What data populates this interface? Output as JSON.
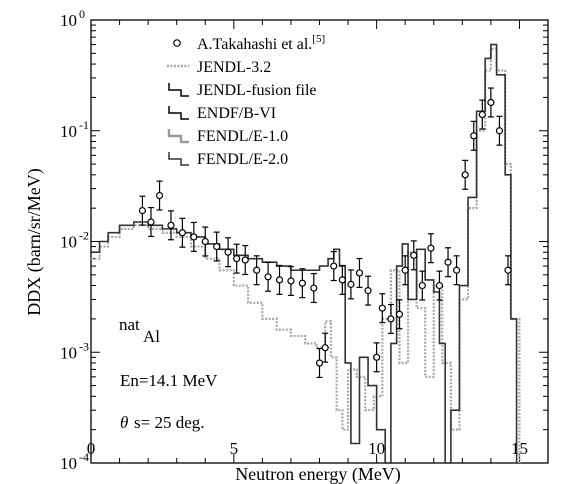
{
  "chart_data": {
    "type": "line",
    "xlabel": "Neutron energy (MeV)",
    "ylabel": "DDX  (barn/sr/MeV)",
    "xlim": [
      0,
      16
    ],
    "ylim": [
      0.0001,
      1
    ],
    "ylog": true,
    "xticks": [
      0,
      5,
      10,
      15
    ],
    "yticks": [
      {
        "value": 1,
        "mantissa": "10",
        "exp": "0"
      },
      {
        "value": 0.1,
        "mantissa": "10",
        "exp": "-1"
      },
      {
        "value": 0.01,
        "mantissa": "10",
        "exp": "-2"
      },
      {
        "value": 0.001,
        "mantissa": "10",
        "exp": "-3"
      },
      {
        "value": 0.0001,
        "mantissa": "10",
        "exp": "-4"
      }
    ],
    "legend_position": "top-center",
    "legend": [
      {
        "label": "A.Takahashi et al.",
        "sup": "[5]",
        "style": "circle"
      },
      {
        "label": "JENDL-3.2",
        "style": "dotted"
      },
      {
        "label": "JENDL-fusion file",
        "style": "step-black"
      },
      {
        "label": "ENDF/B-VI",
        "style": "step-black"
      },
      {
        "label": "FENDL/E-1.0",
        "style": "step-gray"
      },
      {
        "label": "FENDL/E-2.0",
        "style": "step-dark"
      }
    ],
    "annotations": {
      "nuclide_sup": "nat",
      "nuclide": "Al",
      "energy": "En=14.1 MeV",
      "angle_symbol": "θ",
      "angle": "s= 25 deg."
    },
    "series": [
      {
        "name": "A.Takahashi et al.",
        "kind": "points",
        "x": [
          1.8,
          2.1,
          2.4,
          2.8,
          3.2,
          3.6,
          4.0,
          4.4,
          4.8,
          5.1,
          5.4,
          5.8,
          6.2,
          6.6,
          7.0,
          7.4,
          7.8,
          8.0,
          8.2,
          8.5,
          8.8,
          9.1,
          9.4,
          9.7,
          10.0,
          10.2,
          10.5,
          10.8,
          11.0,
          11.3,
          11.6,
          11.9,
          12.2,
          12.5,
          12.8,
          13.1,
          13.4,
          13.7,
          14.0,
          14.3,
          14.6
        ],
        "y": [
          0.019,
          0.015,
          0.026,
          0.014,
          0.012,
          0.011,
          0.01,
          0.009,
          0.008,
          0.007,
          0.0068,
          0.0055,
          0.0048,
          0.0045,
          0.0044,
          0.0042,
          0.0038,
          0.0008,
          0.0011,
          0.006,
          0.0045,
          0.0041,
          0.0052,
          0.0036,
          0.0009,
          0.0025,
          0.002,
          0.0022,
          0.0055,
          0.0075,
          0.004,
          0.0087,
          0.004,
          0.0065,
          0.0055,
          0.04,
          0.09,
          0.14,
          0.18,
          0.1,
          0.0055
        ]
      },
      {
        "name": "JENDL-3.2",
        "kind": "line",
        "x": [
          0,
          0.3,
          0.6,
          1.0,
          1.5,
          2.0,
          2.5,
          3.0,
          3.5,
          4.0,
          4.5,
          5.0,
          5.5,
          6.0,
          6.5,
          7.0,
          7.5,
          7.9,
          8.2,
          8.4,
          8.6,
          8.8,
          9.0,
          9.3,
          9.6,
          9.9,
          10.2,
          10.5,
          10.8,
          11.1,
          11.4,
          11.7,
          12.0,
          12.3,
          12.6,
          12.9,
          13.2,
          13.5,
          13.8,
          14.0,
          14.2,
          14.5,
          14.7,
          15.0
        ],
        "y": [
          0.007,
          0.009,
          0.011,
          0.013,
          0.014,
          0.013,
          0.012,
          0.011,
          0.009,
          0.007,
          0.0055,
          0.004,
          0.0028,
          0.002,
          0.0016,
          0.0014,
          0.0012,
          0.0011,
          0.0019,
          0.0009,
          0.0003,
          0.0002,
          0.0007,
          0.0006,
          0.0003,
          0.0004,
          0.002,
          0.0055,
          0.0008,
          0.008,
          0.0025,
          0.0006,
          0.004,
          0.0008,
          0.0002,
          0.003,
          0.02,
          0.1,
          0.35,
          0.55,
          0.35,
          0.05,
          0.002,
          0.0001
        ]
      },
      {
        "name": "FENDL/E-2.0",
        "kind": "line",
        "x": [
          0,
          0.3,
          0.6,
          1.0,
          1.5,
          2.0,
          2.5,
          3.0,
          3.5,
          4.0,
          4.5,
          5.0,
          5.5,
          6.0,
          6.5,
          7.0,
          7.5,
          8.0,
          8.3,
          8.5,
          8.7,
          8.9,
          9.1,
          9.4,
          9.7,
          10.0,
          10.3,
          10.5,
          10.7,
          10.9,
          11.1,
          11.4,
          11.7,
          12.0,
          12.2,
          12.4,
          12.6,
          12.9,
          13.2,
          13.5,
          13.8,
          14.0,
          14.2,
          14.5,
          14.7,
          14.9
        ],
        "y": [
          0.008,
          0.01,
          0.012,
          0.014,
          0.015,
          0.014,
          0.013,
          0.012,
          0.011,
          0.0095,
          0.0085,
          0.0075,
          0.007,
          0.0065,
          0.006,
          0.0055,
          0.0055,
          0.006,
          0.007,
          0.0085,
          0.006,
          0.0008,
          0.00015,
          0.0009,
          0.0005,
          0.0002,
          0.0001,
          0.0012,
          0.006,
          0.0095,
          0.003,
          0.0085,
          0.0045,
          0.0035,
          0.0012,
          0.0001,
          0.0003,
          0.004,
          0.025,
          0.15,
          0.45,
          0.6,
          0.32,
          0.04,
          0.002,
          0.0001
        ]
      }
    ]
  }
}
